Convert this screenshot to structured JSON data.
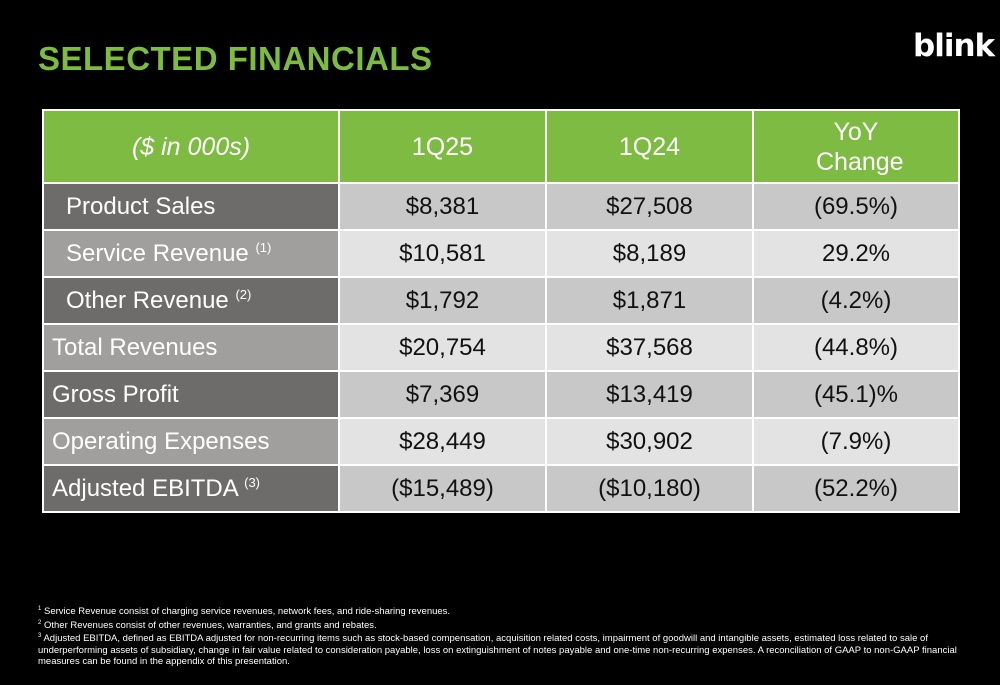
{
  "title": "SELECTED FINANCIALS",
  "logo": "blink",
  "table": {
    "headers": [
      "($ in 000s)",
      "1Q25",
      "1Q24",
      "YoY Change"
    ],
    "rows": [
      {
        "label": "Product Sales",
        "note": "",
        "q125": "$8,381",
        "q124": "$27,508",
        "yoy": "(69.5%)"
      },
      {
        "label": "Service Revenue",
        "note": "(1)",
        "q125": "$10,581",
        "q124": "$8,189",
        "yoy": "29.2%"
      },
      {
        "label": "Other Revenue",
        "note": "(2)",
        "q125": "$1,792",
        "q124": "$1,871",
        "yoy": "(4.2%)"
      },
      {
        "label": "Total Revenues",
        "note": "",
        "q125": "$20,754",
        "q124": "$37,568",
        "yoy": "(44.8%)"
      },
      {
        "label": "Gross Profit",
        "note": "",
        "q125": "$7,369",
        "q124": "$13,419",
        "yoy": "(45.1)%"
      },
      {
        "label": "Operating Expenses",
        "note": "",
        "q125": "$28,449",
        "q124": "$30,902",
        "yoy": "(7.9%)"
      },
      {
        "label": "Adjusted EBITDA",
        "note": "(3)",
        "q125": "($15,489)",
        "q124": "($10,180)",
        "yoy": "(52.2%)"
      }
    ]
  },
  "footnotes": [
    {
      "num": "1",
      "text": "Service Revenue consist of charging service revenues, network fees, and ride-sharing revenues."
    },
    {
      "num": "2",
      "text": "Other Revenues consist of other revenues, warranties, and grants and rebates."
    },
    {
      "num": "3",
      "text": "Adjusted EBITDA, defined as EBITDA adjusted for non-recurring items such as stock-based compensation, acquisition related costs, impairment of goodwill and intangible assets, estimated loss related to sale of underperforming assets of subsidiary, change in fair value related to consideration payable, loss on extinguishment of notes payable and one-time non-recurring expenses. A reconciliation of GAAP to non-GAAP financial measures can be found in the appendix of this presentation."
    }
  ],
  "colors": {
    "accent_green": "#7dbb42",
    "background": "#000000",
    "label_dark": "#6e6c6a",
    "label_light": "#a19f9d",
    "value_dark": "#c8c8c8",
    "value_light": "#e3e3e3"
  }
}
